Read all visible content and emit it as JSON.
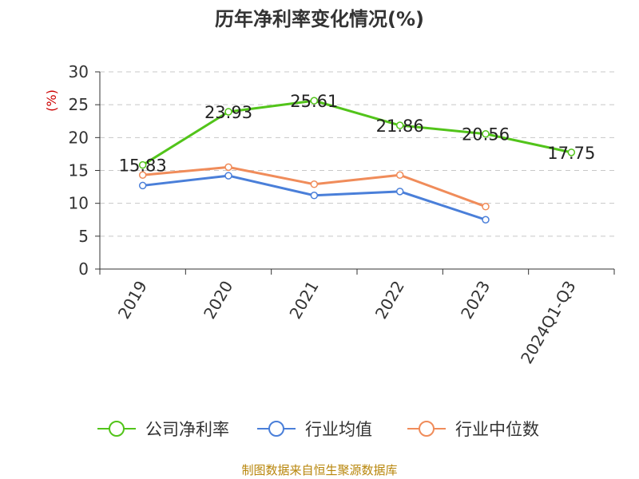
{
  "chart_data": {
    "type": "line",
    "title": "历年净利率变化情况(%)",
    "y_unit": "(%)",
    "categories": [
      "2019",
      "2020",
      "2021",
      "2022",
      "2023",
      "2024Q1-Q3"
    ],
    "ylim": [
      0,
      30
    ],
    "yticks": [
      0,
      5,
      10,
      15,
      20,
      25,
      30
    ],
    "grid": true,
    "legend_position": "bottom",
    "series": [
      {
        "name": "公司净利率",
        "color": "#52c41a",
        "values": [
          15.83,
          23.93,
          25.61,
          21.86,
          20.56,
          17.75
        ],
        "labels": [
          "15.83",
          "23.93",
          "25.61",
          "21.86",
          "20.56",
          "17.75"
        ]
      },
      {
        "name": "行业均值",
        "color": "#4a7fd9",
        "values": [
          12.7,
          14.2,
          11.2,
          11.8,
          7.5,
          null
        ],
        "labels": null
      },
      {
        "name": "行业中位数",
        "color": "#f08c5a",
        "values": [
          14.3,
          15.5,
          12.9,
          14.3,
          9.5,
          null
        ],
        "labels": null
      }
    ]
  },
  "source_text": "制图数据来自恒生聚源数据库"
}
